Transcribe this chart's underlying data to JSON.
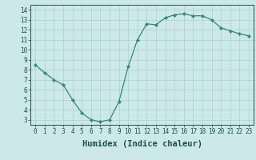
{
  "x": [
    0,
    1,
    2,
    3,
    4,
    5,
    6,
    7,
    8,
    9,
    10,
    11,
    12,
    13,
    14,
    15,
    16,
    17,
    18,
    19,
    20,
    21,
    22,
    23
  ],
  "y": [
    8.5,
    7.7,
    7.0,
    6.5,
    5.0,
    3.7,
    3.0,
    2.8,
    3.0,
    4.8,
    8.3,
    11.0,
    12.6,
    12.5,
    13.2,
    13.5,
    13.6,
    13.4,
    13.4,
    13.0,
    12.2,
    11.9,
    11.6,
    11.4
  ],
  "line_color": "#2e8b77",
  "marker": "D",
  "marker_size": 2.2,
  "bg_color": "#cce8e8",
  "grid_color": "#aad0d0",
  "xlabel": "Humidex (Indice chaleur)",
  "ylim": [
    2.5,
    14.5
  ],
  "xlim": [
    -0.5,
    23.5
  ],
  "yticks": [
    3,
    4,
    5,
    6,
    7,
    8,
    9,
    10,
    11,
    12,
    13,
    14
  ],
  "xticks": [
    0,
    1,
    2,
    3,
    4,
    5,
    6,
    7,
    8,
    9,
    10,
    11,
    12,
    13,
    14,
    15,
    16,
    17,
    18,
    19,
    20,
    21,
    22,
    23
  ],
  "tick_label_fontsize": 5.5,
  "xlabel_fontsize": 7.5,
  "axis_color": "#1a5050",
  "spine_color": "#1a5050"
}
